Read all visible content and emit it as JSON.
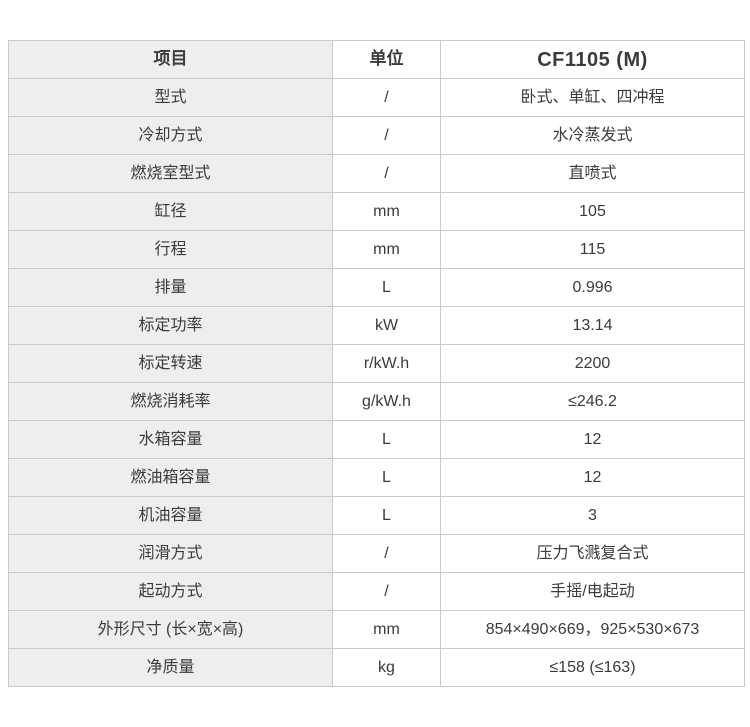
{
  "table": {
    "headers": [
      "项目",
      "单位",
      "CF1105 (M)"
    ],
    "rows": [
      [
        "型式",
        "/",
        "卧式、单缸、四冲程"
      ],
      [
        "冷却方式",
        "/",
        "水冷蒸发式"
      ],
      [
        "燃烧室型式",
        "/",
        "直喷式"
      ],
      [
        "缸径",
        "mm",
        "105"
      ],
      [
        "行程",
        "mm",
        "115"
      ],
      [
        "排量",
        "L",
        "0.996"
      ],
      [
        "标定功率",
        "kW",
        "13.14"
      ],
      [
        "标定转速",
        "r/kW.h",
        "2200"
      ],
      [
        "燃烧消耗率",
        "g/kW.h",
        "≤246.2"
      ],
      [
        "水箱容量",
        "L",
        "12"
      ],
      [
        "燃油箱容量",
        "L",
        "12"
      ],
      [
        "机油容量",
        "L",
        "3"
      ],
      [
        "润滑方式",
        "/",
        "压力飞溅复合式"
      ],
      [
        "起动方式",
        "/",
        "手摇/电起动"
      ],
      [
        "外形尺寸 (长×宽×高)",
        "mm",
        "854×490×669，925×530×673"
      ],
      [
        "净质量",
        "kg",
        "≤158 (≤163)"
      ]
    ],
    "colors": {
      "label_column_bg": "#eeeeee",
      "cell_bg": "#ffffff",
      "border": "#c9c9c9",
      "text": "#3b3b3b"
    }
  }
}
